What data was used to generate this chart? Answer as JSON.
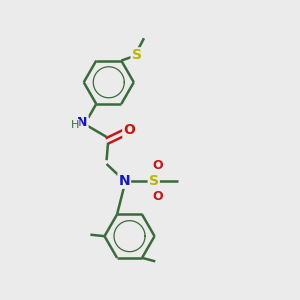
{
  "background_color": "#ebebeb",
  "bond_color": "#3a6b3a",
  "bond_width": 1.8,
  "atom_colors": {
    "N": "#1414cc",
    "O": "#cc1414",
    "S_thio": "#b8b800",
    "S_sulfonyl": "#b8b800"
  },
  "font_size": 9,
  "fig_width": 3.0,
  "fig_height": 3.0,
  "dpi": 100,
  "xlim": [
    0,
    10
  ],
  "ylim": [
    0,
    10
  ]
}
